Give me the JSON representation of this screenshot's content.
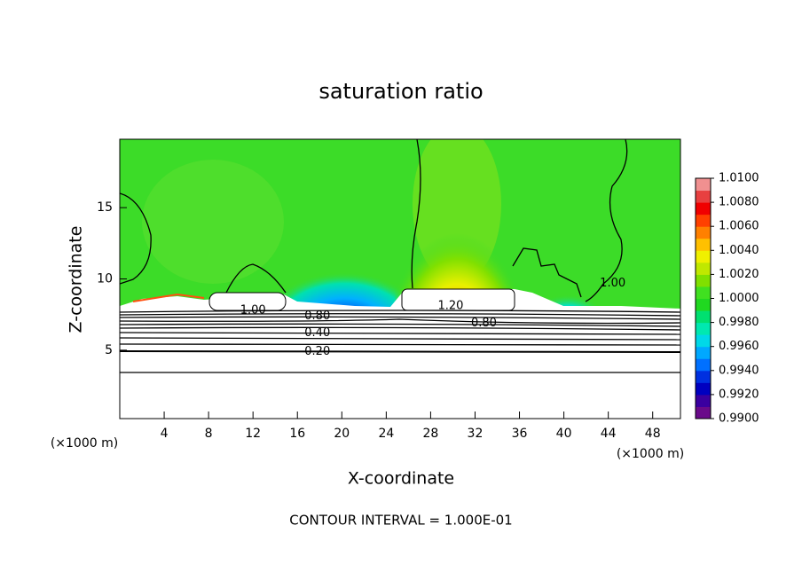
{
  "chart_data": {
    "type": "contour",
    "title": "saturation ratio",
    "x_label": "X-coordinate",
    "y_label": "Z-coordinate",
    "x_unit": "(×1000 m)",
    "y_unit": "(×1000 m)",
    "footer": "CONTOUR INTERVAL = 1.000E-01",
    "xlim": [
      0,
      50.5
    ],
    "ylim": [
      0.2,
      19.8
    ],
    "xticks": [
      4,
      8,
      12,
      16,
      20,
      24,
      28,
      32,
      36,
      40,
      44,
      48
    ],
    "yticks": [
      5,
      10,
      15
    ],
    "colorbar": {
      "lim": [
        0.99,
        1.01
      ],
      "ticks": [
        {
          "value": 0.99,
          "label": "0.9900"
        },
        {
          "value": 0.992,
          "label": "0.9920"
        },
        {
          "value": 0.994,
          "label": "0.9940"
        },
        {
          "value": 0.996,
          "label": "0.9960"
        },
        {
          "value": 0.998,
          "label": "0.9980"
        },
        {
          "value": 1.0,
          "label": "1.0000"
        },
        {
          "value": 1.002,
          "label": "1.0020"
        },
        {
          "value": 1.004,
          "label": "1.0040"
        },
        {
          "value": 1.006,
          "label": "1.0060"
        },
        {
          "value": 1.008,
          "label": "1.0080"
        },
        {
          "value": 1.01,
          "label": "1.0100"
        }
      ],
      "colors": [
        "#6a0a8a",
        "#3a00a0",
        "#0000c0",
        "#0030e0",
        "#0070ff",
        "#00a8ff",
        "#00d8e8",
        "#00e8b0",
        "#00e070",
        "#20d820",
        "#40e020",
        "#80e000",
        "#c0e800",
        "#f0f000",
        "#ffc000",
        "#ff8000",
        "#ff4000",
        "#f00000",
        "#e84040",
        "#f09090"
      ]
    },
    "contour_labels": [
      {
        "value": 1.0,
        "label": "1.00",
        "x": 12,
        "y": 7.8
      },
      {
        "value": 0.8,
        "label": "0.80",
        "x": 17.8,
        "y": 7.4
      },
      {
        "value": 0.4,
        "label": "0.40",
        "x": 17.8,
        "y": 6.2
      },
      {
        "value": 0.2,
        "label": "0.20",
        "x": 17.8,
        "y": 4.9
      },
      {
        "value": 1.2,
        "label": "1.20",
        "x": 29.8,
        "y": 8.1
      },
      {
        "value": 0.8,
        "label": "0.80",
        "x": 32.8,
        "y": 6.9
      },
      {
        "value": 1.0,
        "label": "1.00",
        "x": 44.4,
        "y": 9.7
      }
    ]
  }
}
